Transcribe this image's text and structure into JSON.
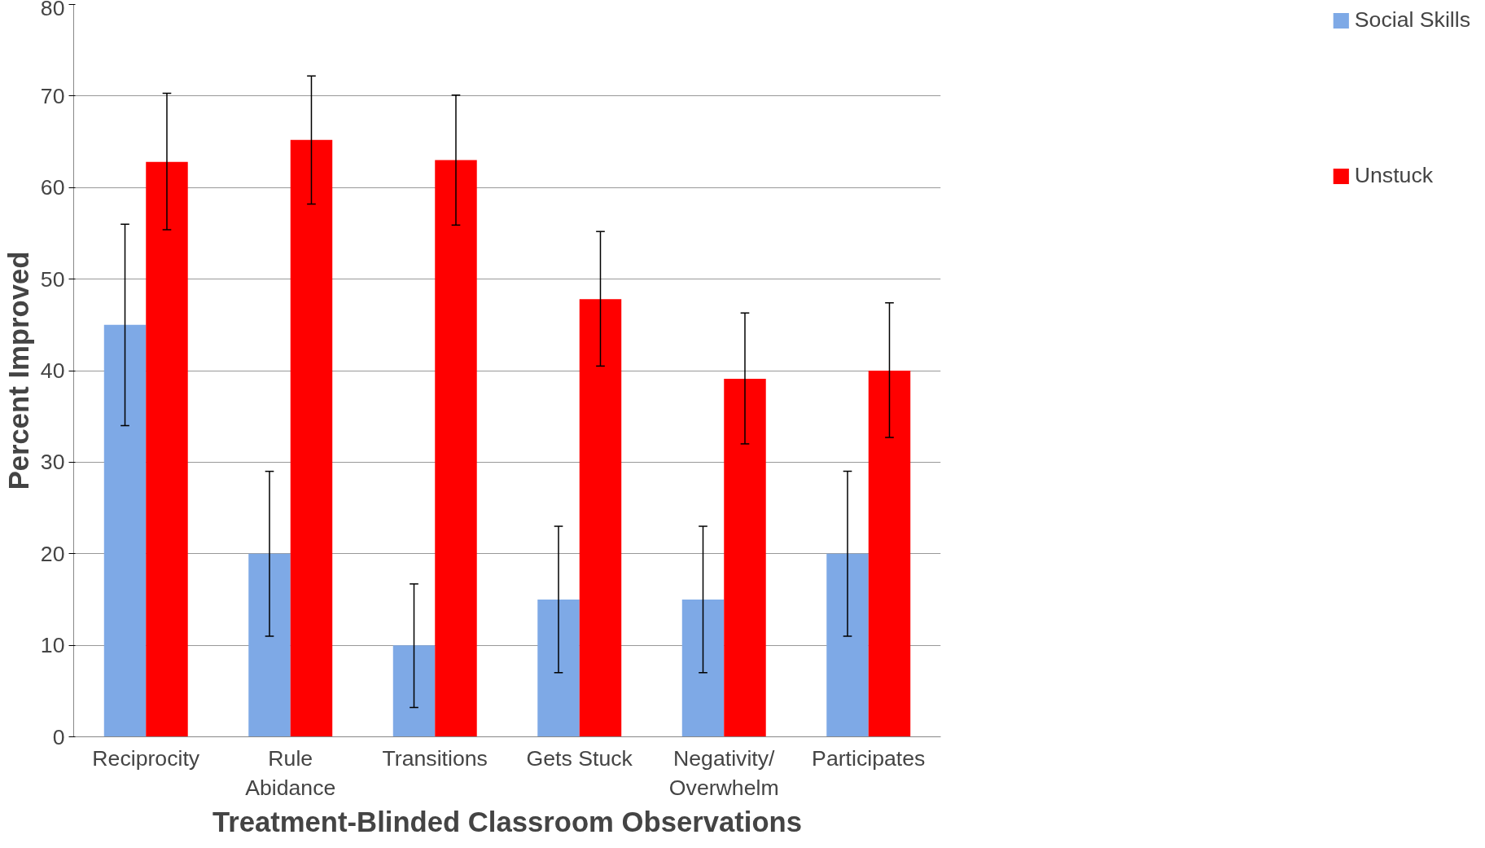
{
  "chart_data": {
    "type": "bar",
    "xlabel": "Treatment-Blinded Classroom Observations",
    "ylabel": "Percent Improved",
    "categories": [
      "Reciprocity",
      "Rule Abidance",
      "Transitions",
      "Gets Stuck",
      "Negativity/ Overwhelm",
      "Participates"
    ],
    "series": [
      {
        "name": "Social Skills",
        "color": "#7ea9e6",
        "values": [
          45,
          20,
          10,
          15,
          15,
          20
        ],
        "errors": [
          [
            34,
            56
          ],
          [
            11,
            29
          ],
          [
            3.2,
            16.7
          ],
          [
            7,
            23
          ],
          [
            7,
            23
          ],
          [
            11,
            29
          ]
        ]
      },
      {
        "name": "Unstuck",
        "color": "#ff0000",
        "values": [
          62.8,
          65.2,
          63,
          47.8,
          39.1,
          40
        ],
        "errors": [
          [
            55.4,
            70.3
          ],
          [
            58.2,
            72.2
          ],
          [
            55.9,
            70.1
          ],
          [
            40.5,
            55.2
          ],
          [
            32,
            46.3
          ],
          [
            32.7,
            47.4
          ]
        ]
      }
    ],
    "ylim": [
      0,
      80
    ],
    "yticks": [
      0,
      10,
      20,
      30,
      40,
      50,
      60,
      70,
      80
    ],
    "grid": "y",
    "legend": "right"
  }
}
